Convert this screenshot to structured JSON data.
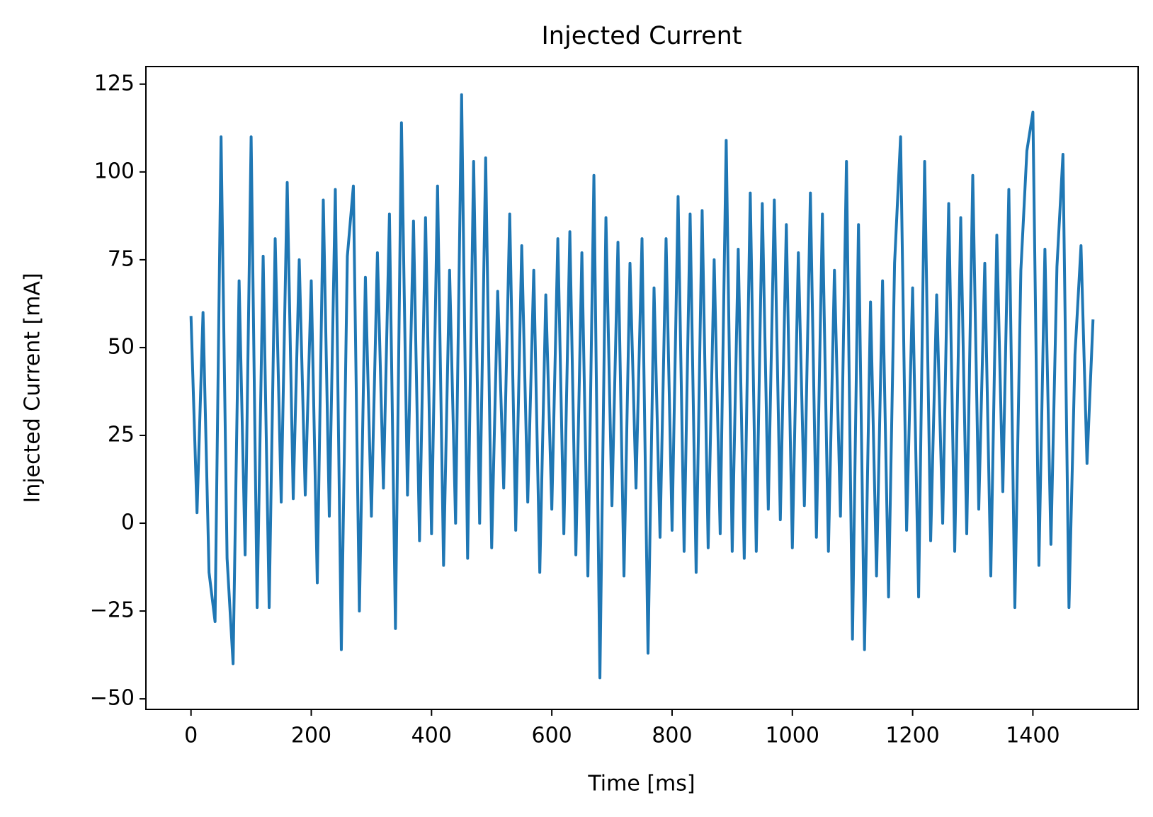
{
  "chart_data": {
    "type": "line",
    "title": "Injected Current",
    "x_label": "Time [ms]",
    "y_label": "Injected Current [mA]",
    "color": "#1f77b4",
    "x": [
      0,
      10,
      20,
      30,
      40,
      50,
      60,
      70,
      80,
      90,
      100,
      110,
      120,
      130,
      140,
      150,
      160,
      170,
      180,
      190,
      200,
      210,
      220,
      230,
      240,
      250,
      260,
      270,
      280,
      290,
      300,
      310,
      320,
      330,
      340,
      350,
      360,
      370,
      380,
      390,
      400,
      410,
      420,
      430,
      440,
      450,
      460,
      470,
      480,
      490,
      500,
      510,
      520,
      530,
      540,
      550,
      560,
      570,
      580,
      590,
      600,
      610,
      620,
      630,
      640,
      650,
      660,
      670,
      680,
      690,
      700,
      710,
      720,
      730,
      740,
      750,
      760,
      770,
      780,
      790,
      800,
      810,
      820,
      830,
      840,
      850,
      860,
      870,
      880,
      890,
      900,
      910,
      920,
      930,
      940,
      950,
      960,
      970,
      980,
      990,
      1000,
      1010,
      1020,
      1030,
      1040,
      1050,
      1060,
      1070,
      1080,
      1090,
      1100,
      1110,
      1120,
      1130,
      1140,
      1150,
      1160,
      1170,
      1180,
      1190,
      1200,
      1210,
      1220,
      1230,
      1240,
      1250,
      1260,
      1270,
      1280,
      1290,
      1300,
      1310,
      1320,
      1330,
      1340,
      1350,
      1360,
      1370,
      1380,
      1390,
      1400,
      1410,
      1420,
      1430,
      1440,
      1450,
      1460,
      1470,
      1480,
      1490,
      1500
    ],
    "values": [
      59,
      3,
      60,
      -14,
      -28,
      110,
      -10,
      -40,
      69,
      -9,
      110,
      -24,
      76,
      -24,
      81,
      6,
      97,
      7,
      75,
      8,
      69,
      -17,
      92,
      2,
      95,
      -36,
      76,
      96,
      -25,
      70,
      2,
      77,
      10,
      88,
      -30,
      114,
      8,
      86,
      -5,
      87,
      -3,
      96,
      -12,
      72,
      0,
      122,
      -10,
      103,
      0,
      104,
      -7,
      66,
      10,
      88,
      -2,
      79,
      6,
      72,
      -14,
      65,
      4,
      81,
      -3,
      83,
      -9,
      77,
      -15,
      99,
      -44,
      87,
      5,
      80,
      -15,
      74,
      10,
      81,
      -37,
      67,
      -4,
      81,
      -2,
      93,
      -8,
      88,
      -14,
      89,
      -7,
      75,
      -3,
      109,
      -8,
      78,
      -10,
      94,
      -8,
      91,
      4,
      92,
      1,
      85,
      -7,
      77,
      5,
      94,
      -4,
      88,
      -8,
      72,
      2,
      103,
      -33,
      85,
      -36,
      63,
      -15,
      69,
      -21,
      74,
      110,
      -2,
      67,
      -21,
      103,
      -5,
      65,
      0,
      91,
      -8,
      87,
      -3,
      99,
      4,
      74,
      -15,
      82,
      9,
      95,
      -24,
      72,
      106,
      117,
      -12,
      78,
      -6,
      73,
      105,
      -24,
      48,
      79,
      17,
      58
    ],
    "xlim": [
      -75,
      1575
    ],
    "ylim": [
      -53,
      130
    ],
    "xticks": [
      0,
      200,
      400,
      600,
      800,
      1000,
      1200,
      1400
    ],
    "yticks": [
      {
        "value": -50,
        "label": "−50"
      },
      {
        "value": -25,
        "label": "−25"
      },
      0,
      25,
      50,
      75,
      100,
      125
    ]
  }
}
